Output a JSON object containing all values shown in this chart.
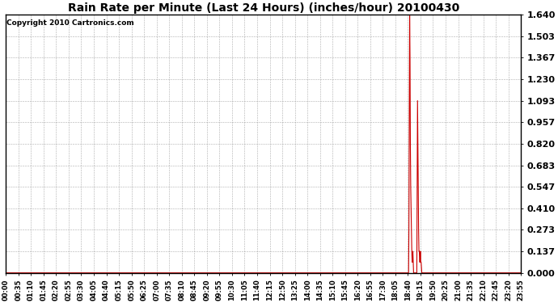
{
  "title": "Rain Rate per Minute (Last 24 Hours) (inches/hour) 20100430",
  "copyright_text": "Copyright 2010 Cartronics.com",
  "line_color": "#cc0000",
  "background_color": "#ffffff",
  "plot_bg_color": "#ffffff",
  "grid_color": "#999999",
  "yticks": [
    0.0,
    0.137,
    0.273,
    0.41,
    0.547,
    0.683,
    0.82,
    0.957,
    1.093,
    1.23,
    1.367,
    1.503,
    1.64
  ],
  "ylim": [
    0.0,
    1.64
  ],
  "xtick_labels": [
    "00:00",
    "00:35",
    "01:10",
    "01:45",
    "02:20",
    "02:55",
    "03:30",
    "04:05",
    "04:40",
    "05:15",
    "05:50",
    "06:25",
    "07:00",
    "07:35",
    "08:10",
    "08:45",
    "09:20",
    "09:55",
    "10:30",
    "11:05",
    "11:40",
    "12:15",
    "12:50",
    "13:25",
    "14:00",
    "14:35",
    "15:10",
    "15:45",
    "16:20",
    "16:55",
    "17:30",
    "18:05",
    "18:40",
    "19:15",
    "19:50",
    "20:25",
    "21:00",
    "21:35",
    "22:10",
    "22:45",
    "23:20",
    "23:55"
  ]
}
